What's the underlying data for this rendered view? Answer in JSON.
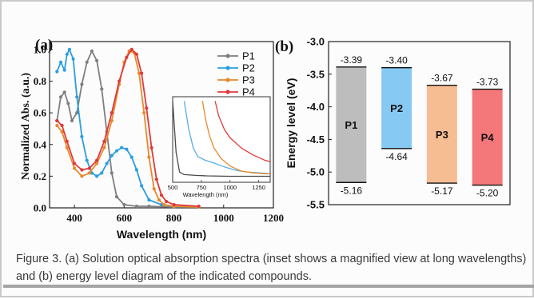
{
  "figure": {
    "caption": "Figure 3. (a) Solution optical absorption spectra (inset shows a magnified view at long wavelengths) and (b) energy level diagram of the indicated compounds."
  },
  "chart_data": [
    {
      "panel_label": "(a)",
      "type": "line",
      "xlabel": "Wavelength (nm)",
      "ylabel": "Normalized Abs. (a.u.)",
      "xlim": [
        300,
        1200
      ],
      "ylim": [
        0.0,
        1.05
      ],
      "xticks": [
        400,
        600,
        800,
        1000,
        1200
      ],
      "yticks": [
        0.0,
        0.2,
        0.4,
        0.6,
        0.8,
        1.0
      ],
      "ytick_labels": [
        "0.0",
        "0.2",
        "0.4",
        "0.6",
        "0.8",
        "1.0"
      ],
      "legend": {
        "position": "top-right",
        "entries": [
          "P1",
          "P2",
          "P3",
          "P4"
        ]
      },
      "series": [
        {
          "name": "P1",
          "color": "#7f7f7f",
          "x": [
            330,
            345,
            360,
            375,
            390,
            410,
            430,
            450,
            470,
            490,
            510,
            530,
            550,
            570,
            600,
            650,
            700,
            800,
            900
          ],
          "y": [
            0.55,
            0.7,
            0.73,
            0.66,
            0.55,
            0.6,
            0.78,
            0.92,
            0.99,
            0.93,
            0.75,
            0.48,
            0.22,
            0.07,
            0.02,
            0.01,
            0.01,
            0.005,
            0.005
          ]
        },
        {
          "name": "P2",
          "color": "#2a9ee0",
          "x": [
            330,
            345,
            360,
            370,
            380,
            395,
            410,
            430,
            450,
            470,
            490,
            510,
            530,
            550,
            570,
            590,
            610,
            630,
            650,
            670,
            700,
            750,
            800,
            900
          ],
          "y": [
            0.86,
            0.92,
            0.87,
            0.97,
            1.0,
            0.94,
            0.7,
            0.45,
            0.3,
            0.22,
            0.2,
            0.22,
            0.28,
            0.33,
            0.36,
            0.38,
            0.37,
            0.32,
            0.24,
            0.14,
            0.05,
            0.02,
            0.01,
            0.005
          ]
        },
        {
          "name": "P3",
          "color": "#e8892b",
          "x": [
            330,
            350,
            370,
            400,
            430,
            460,
            490,
            520,
            550,
            580,
            600,
            620,
            640,
            660,
            680,
            700,
            720,
            740,
            760,
            800,
            900
          ],
          "y": [
            0.52,
            0.48,
            0.38,
            0.25,
            0.2,
            0.22,
            0.28,
            0.38,
            0.55,
            0.78,
            0.92,
            0.99,
            0.98,
            0.85,
            0.6,
            0.32,
            0.12,
            0.05,
            0.02,
            0.01,
            0.005
          ]
        },
        {
          "name": "P4",
          "color": "#e0393b",
          "x": [
            330,
            350,
            370,
            400,
            430,
            460,
            490,
            520,
            550,
            580,
            610,
            630,
            650,
            670,
            690,
            710,
            730,
            750,
            770,
            800,
            900
          ],
          "y": [
            0.55,
            0.52,
            0.42,
            0.28,
            0.24,
            0.25,
            0.3,
            0.42,
            0.6,
            0.8,
            0.95,
            1.0,
            0.97,
            0.85,
            0.63,
            0.38,
            0.18,
            0.08,
            0.04,
            0.02,
            0.01
          ]
        }
      ],
      "inset": {
        "xlabel": "Wavelength (nm)",
        "xlim": [
          500,
          1350
        ],
        "xticks": [
          500,
          750,
          1000,
          1250
        ],
        "series": [
          {
            "name": "P1",
            "color": "#4a4a4a",
            "x": [
              500,
              530,
              560,
              600,
              700,
              800,
              1000,
              1200,
              1350
            ],
            "y": [
              0.95,
              0.35,
              0.12,
              0.09,
              0.08,
              0.075,
              0.07,
              0.07,
              0.07
            ]
          },
          {
            "name": "P2",
            "color": "#55aee6",
            "x": [
              600,
              640,
              680,
              720,
              780,
              850,
              950,
              1050,
              1150,
              1250,
              1350
            ],
            "y": [
              0.95,
              0.62,
              0.4,
              0.3,
              0.26,
              0.23,
              0.18,
              0.14,
              0.12,
              0.11,
              0.1
            ]
          },
          {
            "name": "P3",
            "color": "#e8892b",
            "x": [
              760,
              790,
              820,
              860,
              920,
              1000,
              1100,
              1200,
              1300,
              1350
            ],
            "y": [
              0.95,
              0.72,
              0.55,
              0.4,
              0.28,
              0.19,
              0.13,
              0.11,
              0.1,
              0.1
            ]
          },
          {
            "name": "P4",
            "color": "#e0393b",
            "x": [
              870,
              900,
              950,
              1000,
              1100,
              1200,
              1300,
              1350
            ],
            "y": [
              0.95,
              0.78,
              0.62,
              0.52,
              0.4,
              0.32,
              0.26,
              0.24
            ]
          }
        ]
      }
    },
    {
      "panel_label": "(b)",
      "type": "bar",
      "ylabel": "Energy level (eV)",
      "ylim": [
        -5.5,
        -3.0
      ],
      "yticks": [
        -3.0,
        -3.5,
        -4.0,
        -4.5,
        -5.0,
        -5.5
      ],
      "ytick_labels": [
        "-3.0",
        "-3.5",
        "-4.0",
        "-4.5",
        "-5.0",
        "-5.5"
      ],
      "categories": [
        "P1",
        "P2",
        "P3",
        "P4"
      ],
      "lumo": [
        -3.39,
        -3.4,
        -3.67,
        -3.73
      ],
      "homo": [
        -5.16,
        -4.64,
        -5.17,
        -5.2
      ],
      "lumo_labels": [
        "-3.39",
        "-3.40",
        "-3.67",
        "-3.73"
      ],
      "homo_labels": [
        "-5.16",
        "-4.64",
        "-5.17",
        "-5.20"
      ],
      "colors": [
        "#bdbdbd",
        "#86c9f2",
        "#f6bd92",
        "#f4787a"
      ]
    }
  ]
}
